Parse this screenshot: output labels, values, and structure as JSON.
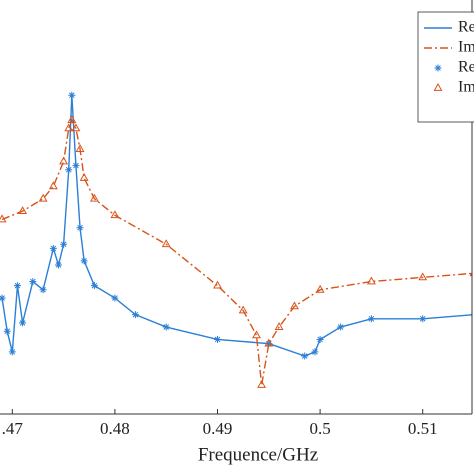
{
  "chart_data": {
    "type": "line",
    "xlabel": "Frequence/GHz",
    "xlim": [
      0.4688,
      0.515
    ],
    "xticks": [
      {
        "value": 0.47,
        "label": ".47"
      },
      0.48,
      0.49,
      {
        "value": 0.5,
        "label": "0.5"
      },
      0.51
    ],
    "ylim": [
      0,
      1
    ],
    "legend": "upper right",
    "series": [
      {
        "name": "Re",
        "color": "#2b7fd6",
        "style": "solid",
        "x": [
          0.469,
          0.4695,
          0.47,
          0.4705,
          0.471,
          0.472,
          0.473,
          0.474,
          0.4745,
          0.475,
          0.4755,
          0.4758,
          0.4762,
          0.4766,
          0.477,
          0.478,
          0.48,
          0.482,
          0.485,
          0.49,
          0.495,
          0.4985,
          0.4995,
          0.5,
          0.502,
          0.505,
          0.51,
          0.515
        ],
        "values": [
          0.28,
          0.2,
          0.15,
          0.31,
          0.22,
          0.32,
          0.3,
          0.4,
          0.36,
          0.41,
          0.59,
          0.77,
          0.6,
          0.45,
          0.37,
          0.31,
          0.28,
          0.24,
          0.21,
          0.18,
          0.17,
          0.14,
          0.15,
          0.18,
          0.21,
          0.23,
          0.23,
          0.24
        ]
      },
      {
        "name": "Im",
        "color": "#d95319",
        "style": "dashdot",
        "x": [
          0.469,
          0.471,
          0.473,
          0.474,
          0.475,
          0.4755,
          0.4758,
          0.4762,
          0.4766,
          0.477,
          0.478,
          0.48,
          0.485,
          0.49,
          0.4925,
          0.4938,
          0.4943,
          0.495,
          0.496,
          0.4975,
          0.5,
          0.505,
          0.51,
          0.515
        ],
        "values": [
          0.47,
          0.49,
          0.52,
          0.55,
          0.61,
          0.69,
          0.71,
          0.69,
          0.64,
          0.57,
          0.52,
          0.48,
          0.41,
          0.31,
          0.25,
          0.19,
          0.07,
          0.17,
          0.21,
          0.26,
          0.3,
          0.32,
          0.33,
          0.34
        ]
      },
      {
        "name": "Re",
        "color": "#2b7fd6",
        "style": "star",
        "x": [
          0.469,
          0.4695,
          0.47,
          0.4705,
          0.471,
          0.472,
          0.473,
          0.474,
          0.4745,
          0.475,
          0.4755,
          0.4758,
          0.4762,
          0.4766,
          0.477,
          0.478,
          0.48,
          0.482,
          0.485,
          0.49,
          0.495,
          0.4985,
          0.4995,
          0.5,
          0.502,
          0.505,
          0.51,
          0.515
        ],
        "values": [
          0.28,
          0.2,
          0.15,
          0.31,
          0.22,
          0.32,
          0.3,
          0.4,
          0.36,
          0.41,
          0.59,
          0.77,
          0.6,
          0.45,
          0.37,
          0.31,
          0.28,
          0.24,
          0.21,
          0.18,
          0.17,
          0.14,
          0.15,
          0.18,
          0.21,
          0.23,
          0.23,
          0.24
        ]
      },
      {
        "name": "Im",
        "color": "#d95319",
        "style": "triangle",
        "x": [
          0.469,
          0.471,
          0.473,
          0.474,
          0.475,
          0.4755,
          0.4758,
          0.4762,
          0.4766,
          0.477,
          0.478,
          0.48,
          0.485,
          0.49,
          0.4925,
          0.4938,
          0.4943,
          0.495,
          0.496,
          0.4975,
          0.5,
          0.505,
          0.51,
          0.515
        ],
        "values": [
          0.47,
          0.49,
          0.52,
          0.55,
          0.61,
          0.69,
          0.71,
          0.69,
          0.64,
          0.57,
          0.52,
          0.48,
          0.41,
          0.31,
          0.25,
          0.19,
          0.07,
          0.17,
          0.21,
          0.26,
          0.3,
          0.32,
          0.33,
          0.34
        ]
      }
    ]
  }
}
